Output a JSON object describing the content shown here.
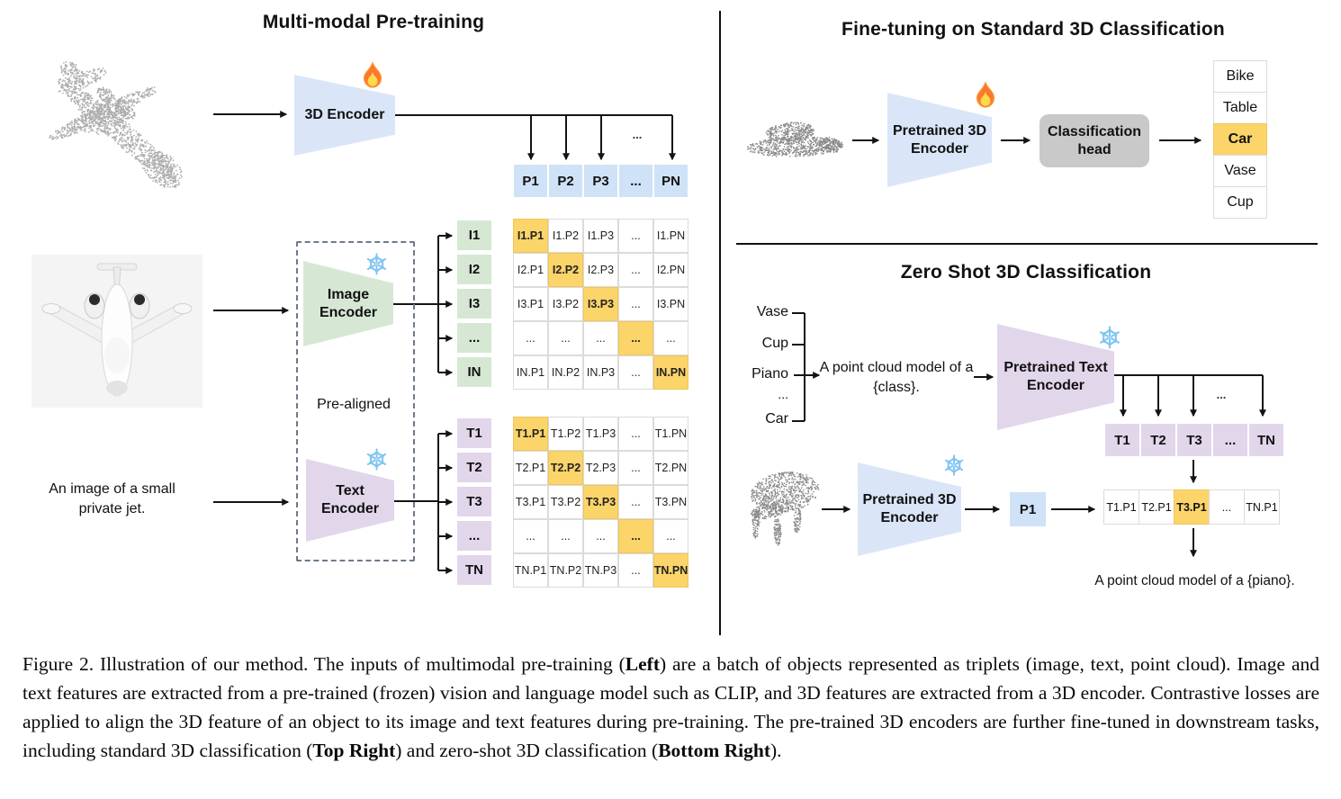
{
  "ellipsis": "...",
  "colors": {
    "highlight": "#FBD46A",
    "cell_blue": "#CFE2F7",
    "trapezoid_blue": "#DAE6F8",
    "cell_green": "#D6E8D4",
    "cell_purple": "#E2D6EB",
    "head_gray": "#C9C9C9"
  },
  "icons": {
    "trainable": "flame",
    "frozen": "snowflake"
  },
  "panels": {
    "pretrain": {
      "title": "Multi-modal Pre-training",
      "encoder_3d": "3D Encoder",
      "image_encoder": "Image Encoder",
      "text_encoder": "Text Encoder",
      "prealigned": "Pre-aligned",
      "image_caption": "An image of a small private jet.",
      "p_row": [
        "P1",
        "P2",
        "P3",
        "...",
        "PN"
      ],
      "i_labels": [
        "I1",
        "I2",
        "I3",
        "...",
        "IN"
      ],
      "i_matrix": [
        [
          "I1.P1",
          "I1.P2",
          "I1.P3",
          "...",
          "I1.PN"
        ],
        [
          "I2.P1",
          "I2.P2",
          "I2.P3",
          "...",
          "I2.PN"
        ],
        [
          "I3.P1",
          "I3.P2",
          "I3.P3",
          "...",
          "I3.PN"
        ],
        [
          "...",
          "...",
          "...",
          "...",
          "..."
        ],
        [
          "IN.P1",
          "IN.P2",
          "IN.P3",
          "...",
          "IN.PN"
        ]
      ],
      "t_labels": [
        "T1",
        "T2",
        "T3",
        "...",
        "TN"
      ],
      "t_matrix": [
        [
          "T1.P1",
          "T1.P2",
          "T1.P3",
          "...",
          "T1.PN"
        ],
        [
          "T2.P1",
          "T2.P2",
          "T2.P3",
          "...",
          "T2.PN"
        ],
        [
          "T3.P1",
          "T3.P2",
          "T3.P3",
          "...",
          "T3.PN"
        ],
        [
          "...",
          "...",
          "...",
          "...",
          "..."
        ],
        [
          "TN.P1",
          "TN.P2",
          "TN.P3",
          "...",
          "TN.PN"
        ]
      ]
    },
    "finetune": {
      "title": "Fine-tuning on Standard 3D Classification",
      "encoder": "Pretrained 3D Encoder",
      "head": "Classification head",
      "classes": [
        "Bike",
        "Table",
        "Car",
        "Vase",
        "Cup"
      ],
      "predicted_class": "Car"
    },
    "zeroshot": {
      "title": "Zero Shot 3D Classification",
      "candidate_classes": [
        "Vase",
        "Cup",
        "Piano",
        "...",
        "Car"
      ],
      "prompt": "A point cloud model of a {class}.",
      "text_encoder": "Pretrained Text Encoder",
      "encoder_3d": "Pretrained 3D Encoder",
      "p_vector": "P1",
      "t_row": [
        "T1",
        "T2",
        "T3",
        "...",
        "TN"
      ],
      "similarity_row": [
        "T1.P1",
        "T2.P1",
        "T3.P1",
        "...",
        "TN.P1"
      ],
      "matched_index": 2,
      "result_text": "A point cloud model of a {piano}."
    }
  },
  "caption": {
    "segments": [
      {
        "text": "Figure 2. Illustration of our method. The inputs of multimodal pre-training (",
        "bold": false
      },
      {
        "text": "Left",
        "bold": true
      },
      {
        "text": ") are a batch of objects represented as triplets (image, text, point cloud).  Image and text features are extracted from a pre-trained (frozen) vision and language model such as CLIP, and 3D features are extracted from a 3D encoder.  Contrastive losses are applied to align the 3D feature of an object to its image and text features during pre-training. The pre-trained 3D encoders are further fine-tuned in downstream tasks, including standard 3D classification (",
        "bold": false
      },
      {
        "text": "Top Right",
        "bold": true
      },
      {
        "text": ") and zero-shot 3D classification (",
        "bold": false
      },
      {
        "text": "Bottom Right",
        "bold": true
      },
      {
        "text": ").",
        "bold": false
      }
    ]
  }
}
